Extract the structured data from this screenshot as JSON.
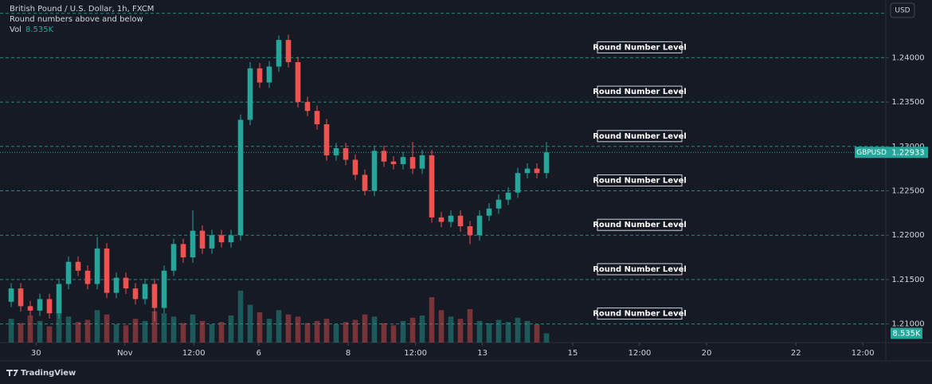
{
  "header": {
    "title": "British Pound / U.S. Dollar, 1h, FXCM",
    "indicator": "Round numbers above and below",
    "vol_label": "Vol",
    "currency": "USD"
  },
  "chart_data": {
    "type": "candlestick",
    "x": [
      0,
      1,
      2,
      3,
      4,
      5,
      6,
      7,
      8,
      9,
      10,
      11,
      12,
      13,
      14,
      15,
      16,
      17,
      18,
      19,
      20,
      21,
      22,
      23,
      24,
      25,
      26,
      27,
      28,
      29,
      30,
      31,
      32,
      33,
      34,
      35,
      36,
      37,
      38,
      39,
      40,
      41,
      42,
      43,
      44,
      45,
      46,
      47,
      48,
      49,
      50,
      51,
      52,
      53,
      54,
      55,
      56
    ],
    "open": [
      1.2125,
      1.214,
      1.212,
      1.2115,
      1.2128,
      1.2112,
      1.2145,
      1.217,
      1.216,
      1.2145,
      1.2185,
      1.2135,
      1.2152,
      1.214,
      1.2128,
      1.2145,
      1.2118,
      1.216,
      1.219,
      1.2175,
      1.2205,
      1.2185,
      1.22,
      1.2192,
      1.22,
      1.233,
      1.2388,
      1.2372,
      1.239,
      1.242,
      1.2395,
      1.235,
      1.234,
      1.2325,
      1.229,
      1.2298,
      1.2285,
      1.2268,
      1.225,
      1.2295,
      1.2283,
      1.228,
      1.2288,
      1.2275,
      1.229,
      1.222,
      1.2215,
      1.2222,
      1.221,
      1.22,
      1.2222,
      1.223,
      1.224,
      1.2248,
      1.227,
      1.2275,
      1.227
    ],
    "high": [
      1.2146,
      1.2146,
      1.2126,
      1.2134,
      1.2134,
      1.2151,
      1.2176,
      1.2176,
      1.2166,
      1.2198,
      1.2191,
      1.2158,
      1.2158,
      1.2146,
      1.2151,
      1.2151,
      1.2166,
      1.2196,
      1.2196,
      1.2228,
      1.2211,
      1.2206,
      1.2206,
      1.2206,
      1.2336,
      1.2395,
      1.2394,
      1.2396,
      1.2425,
      1.2426,
      1.2401,
      1.2356,
      1.2346,
      1.2331,
      1.2304,
      1.2304,
      1.2291,
      1.2274,
      1.2301,
      1.2301,
      1.2289,
      1.2294,
      1.2305,
      1.2296,
      1.2296,
      1.2226,
      1.2228,
      1.2228,
      1.2216,
      1.2228,
      1.2236,
      1.2246,
      1.2254,
      1.2276,
      1.2281,
      1.2281,
      1.2305
    ],
    "low": [
      1.2119,
      1.2114,
      1.2109,
      1.2109,
      1.2106,
      1.2106,
      1.2139,
      1.2154,
      1.2139,
      1.2139,
      1.2129,
      1.2129,
      1.2134,
      1.2122,
      1.2122,
      1.2103,
      1.2112,
      1.2154,
      1.2169,
      1.2169,
      1.2179,
      1.2179,
      1.2186,
      1.2186,
      1.2194,
      1.2324,
      1.2366,
      1.2366,
      1.2384,
      1.2389,
      1.2344,
      1.2334,
      1.2319,
      1.2284,
      1.2284,
      1.2279,
      1.2262,
      1.2245,
      1.2244,
      1.2277,
      1.2274,
      1.2274,
      1.2269,
      1.2269,
      1.2214,
      1.2209,
      1.2209,
      1.2204,
      1.219,
      1.2194,
      1.2216,
      1.2224,
      1.2234,
      1.2242,
      1.2264,
      1.2264,
      1.2264
    ],
    "close": [
      1.214,
      1.212,
      1.2115,
      1.2128,
      1.2112,
      1.2145,
      1.217,
      1.216,
      1.2145,
      1.2185,
      1.2135,
      1.2152,
      1.214,
      1.2128,
      1.2145,
      1.2118,
      1.216,
      1.219,
      1.2175,
      1.2205,
      1.2185,
      1.22,
      1.2192,
      1.22,
      1.233,
      1.2388,
      1.2372,
      1.239,
      1.242,
      1.2395,
      1.235,
      1.234,
      1.2325,
      1.229,
      1.2298,
      1.2285,
      1.2268,
      1.225,
      1.2295,
      1.2283,
      1.228,
      1.2288,
      1.2275,
      1.229,
      1.222,
      1.2215,
      1.2222,
      1.221,
      1.22,
      1.2222,
      1.223,
      1.224,
      1.2248,
      1.227,
      1.2275,
      1.227,
      1.22933
    ],
    "volume": [
      22,
      18,
      25,
      20,
      15,
      28,
      24,
      19,
      21,
      30,
      26,
      17,
      16,
      22,
      20,
      29,
      27,
      24,
      18,
      26,
      20,
      17,
      19,
      25,
      48,
      35,
      28,
      22,
      30,
      26,
      24,
      18,
      20,
      22,
      17,
      19,
      21,
      26,
      24,
      18,
      16,
      20,
      23,
      25,
      42,
      30,
      24,
      22,
      31,
      20,
      18,
      21,
      19,
      23,
      20,
      17,
      8.535
    ],
    "up_color": "#26a69a",
    "down_color": "#ef5350",
    "xlim": [
      -1.17,
      91.5
    ],
    "xticks": [
      {
        "value": 2.6,
        "label": "30"
      },
      {
        "value": 11.9,
        "label": "Nov"
      },
      {
        "value": 19.1,
        "label": "12:00"
      },
      {
        "value": 25.9,
        "label": "6"
      },
      {
        "value": 35.25,
        "label": "8"
      },
      {
        "value": 42.3,
        "label": "12:00"
      },
      {
        "value": 49.3,
        "label": "13"
      },
      {
        "value": 58.75,
        "label": "15"
      },
      {
        "value": 65.75,
        "label": "12:00"
      },
      {
        "value": 72.75,
        "label": "20"
      },
      {
        "value": 82.1,
        "label": "22"
      },
      {
        "value": 89.1,
        "label": "12:00"
      }
    ],
    "ylim": [
      1.2079,
      1.2465
    ],
    "yticks": [
      {
        "value": 1.24,
        "label": "1.24000"
      },
      {
        "value": 1.235,
        "label": "1.23500"
      },
      {
        "value": 1.23,
        "label": "1.23000"
      },
      {
        "value": 1.225,
        "label": "1.22500"
      },
      {
        "value": 1.22,
        "label": "1.22000"
      },
      {
        "value": 1.215,
        "label": "1.21500"
      },
      {
        "value": 1.21,
        "label": "1.21000"
      }
    ],
    "volume_lim": [
      0,
      70
    ],
    "levels": [
      1.245,
      1.24,
      1.235,
      1.23,
      1.225,
      1.22,
      1.215,
      1.21
    ],
    "level_notes": [
      {
        "value": 1.24,
        "label": "Round Number Level"
      },
      {
        "value": 1.235,
        "label": "Round Number Level"
      },
      {
        "value": 1.23,
        "label": "Round Number Level"
      },
      {
        "value": 1.225,
        "label": "Round Number Level"
      },
      {
        "value": 1.22,
        "label": "Round Number Level"
      },
      {
        "value": 1.215,
        "label": "Round Number Level"
      },
      {
        "value": 1.21,
        "label": "Round Number Level"
      }
    ],
    "last_price": {
      "symbol": "GBPUSD",
      "value": 1.22933
    },
    "last_volume": {
      "value": 8.535,
      "label": "8.535K"
    }
  },
  "footer": {
    "brand": "TradingView"
  }
}
